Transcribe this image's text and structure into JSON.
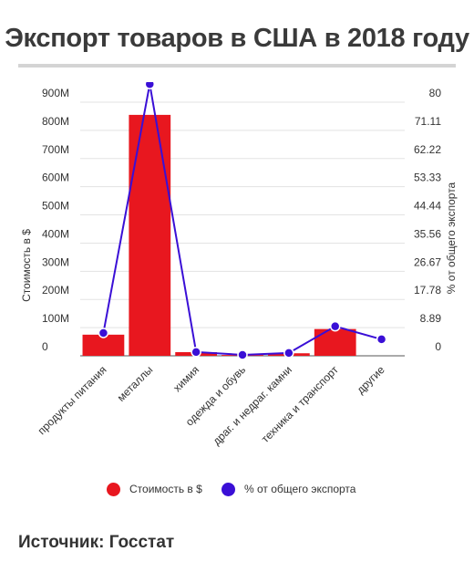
{
  "header": {
    "title": "Экспорт товаров в США в 2018 году"
  },
  "footer": {
    "source": "Источник: Госстат"
  },
  "chart_data": {
    "type": "bar",
    "categories": [
      "продукты питания",
      "металлы",
      "химия",
      "одежда и обувь",
      "драг. и недраг. камни",
      "техника и транспорт",
      "другие"
    ],
    "series": [
      {
        "name": "Стоимость в $",
        "type": "bar",
        "axis": "left",
        "color": "#e8171f",
        "values": [
          75,
          855,
          13,
          3,
          9,
          95,
          0
        ]
      },
      {
        "name": "% от общего экспорта",
        "type": "line",
        "axis": "right",
        "color": "#3a0fd6",
        "values": [
          7.2,
          85.7,
          1.2,
          0.3,
          0.9,
          9.3,
          5.2
        ]
      }
    ],
    "y_left": {
      "label": "Стоимость в $",
      "min": 0,
      "max": 900,
      "unit": "M",
      "ticks": [
        "0",
        "100M",
        "200M",
        "300M",
        "400M",
        "500M",
        "600M",
        "700M",
        "800M",
        "900M"
      ]
    },
    "y_right": {
      "label": "% от общего экспорта",
      "min": 0,
      "max": 80,
      "ticks": [
        "0",
        "8.89",
        "17.78",
        "26.67",
        "35.56",
        "44.44",
        "53.33",
        "62.22",
        "71.11",
        "80"
      ]
    },
    "grid": true,
    "legend_position": "bottom"
  }
}
